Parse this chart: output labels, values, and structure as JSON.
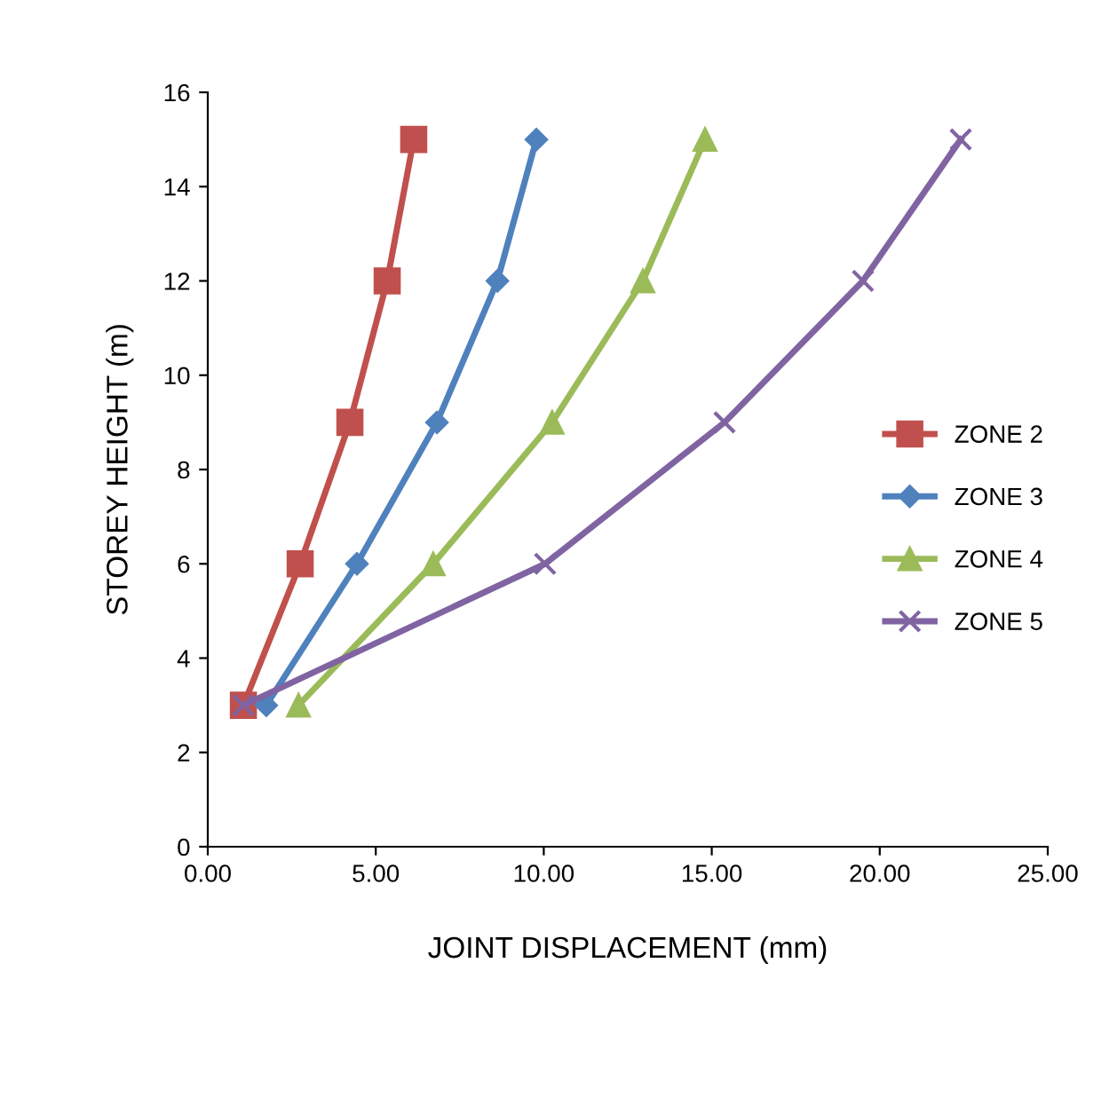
{
  "chart_data": {
    "type": "line",
    "xlabel": "JOINT DISPLACEMENT (mm)",
    "ylabel": "STOREY HEIGHT (m)",
    "xlim": [
      0,
      25
    ],
    "xticks": [
      {
        "value": 0,
        "label": "0.00"
      },
      {
        "value": 5,
        "label": "5.00"
      },
      {
        "value": 10,
        "label": "10.00"
      },
      {
        "value": 15,
        "label": "15.00"
      },
      {
        "value": 20,
        "label": "20.00"
      },
      {
        "value": 25,
        "label": "25.00"
      }
    ],
    "ylim": [
      0,
      16
    ],
    "yticks": [
      0,
      2,
      4,
      6,
      8,
      10,
      12,
      14,
      16
    ],
    "grid": false,
    "legend": "right",
    "line_style": "solid",
    "series": [
      {
        "name": "ZONE 2",
        "color": "#c0504d",
        "marker": "square",
        "x": [
          1.06,
          2.75,
          4.23,
          5.34,
          6.13
        ],
        "values": [
          3,
          6,
          9,
          12,
          15
        ]
      },
      {
        "name": "ZONE 3",
        "color": "#4f81bd",
        "marker": "diamond",
        "x": [
          1.74,
          4.44,
          6.82,
          8.62,
          9.78
        ],
        "values": [
          3,
          6,
          9,
          12,
          15
        ]
      },
      {
        "name": "ZONE 4",
        "color": "#9bbb59",
        "marker": "triangle",
        "x": [
          2.7,
          6.71,
          10.25,
          12.95,
          14.8
        ],
        "values": [
          3,
          6,
          9,
          12,
          15
        ]
      },
      {
        "name": "ZONE 5",
        "color": "#8064a2",
        "marker": "cross",
        "x": [
          1.06,
          10.04,
          15.38,
          19.5,
          22.41
        ],
        "values": [
          3,
          6,
          9,
          12,
          15
        ]
      }
    ]
  }
}
